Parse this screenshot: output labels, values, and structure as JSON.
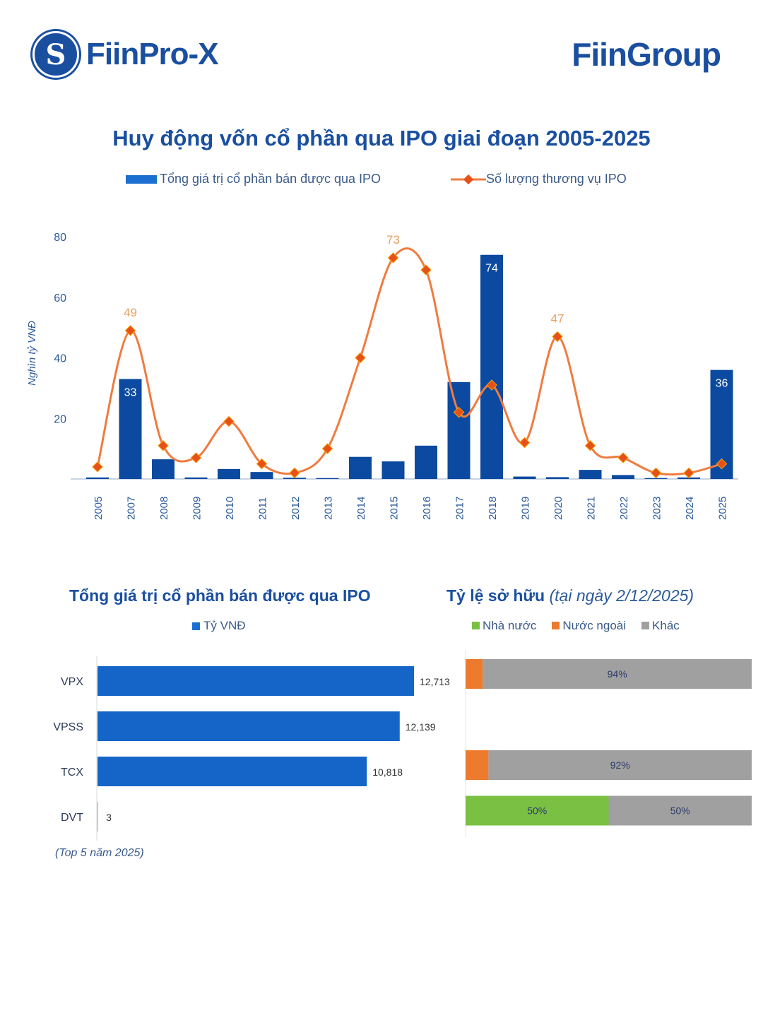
{
  "header": {
    "left_logo": "FiinPro-X",
    "left_logo_mark": "S",
    "right_logo": "FiinGroup"
  },
  "colors": {
    "brand": "#1a4fa0",
    "bar": "#0b4aa0",
    "line": "#f07b3f",
    "marker": "#e8501a",
    "state": "#7ac143",
    "foreign": "#ee7a2e",
    "other": "#a0a0a0"
  },
  "chart_data": [
    {
      "type": "bar+line",
      "title": "Huy động vốn cổ phần qua IPO giai đoạn 2005-2025",
      "ylabel": "Nghìn tỷ VNĐ",
      "ylim": [
        0,
        80
      ],
      "yticks": [
        "20",
        "40",
        "60",
        "80"
      ],
      "legend_position": "top",
      "categories": [
        "2005",
        "2007",
        "2008",
        "2009",
        "2010",
        "2011",
        "2012",
        "2013",
        "2014",
        "2015",
        "2016",
        "2017",
        "2018",
        "2019",
        "2020",
        "2021",
        "2022",
        "2023",
        "2024",
        "2025"
      ],
      "series": [
        {
          "name": "Tổng giá trị cổ phần bán được qua IPO",
          "type": "bar",
          "values": [
            0.5,
            33,
            6.5,
            0.5,
            3.3,
            2.3,
            0.4,
            0.3,
            7.3,
            5.8,
            11,
            32,
            74,
            0.8,
            0.6,
            3,
            1.3,
            0.3,
            0.5,
            36
          ],
          "data_labels": {
            "2007": "33",
            "2018": "74",
            "2025": "36"
          }
        },
        {
          "name": "Số lượng thương vụ IPO",
          "type": "line",
          "values": [
            4,
            49,
            11,
            7,
            19,
            5,
            2,
            10,
            40,
            73,
            69,
            22,
            31,
            12,
            47,
            11,
            7,
            2,
            2,
            5
          ],
          "data_labels": {
            "2007": "49",
            "2015": "73",
            "2020": "47"
          }
        }
      ]
    },
    {
      "type": "bar",
      "orientation": "horizontal",
      "title": "Tổng giá trị cổ phần bán được qua IPO",
      "legend": "Tỷ VNĐ",
      "categories": [
        "VPX",
        "VPSS",
        "TCX",
        "DVT"
      ],
      "values": [
        12713,
        12139,
        10818,
        3
      ],
      "value_labels": [
        "12,713",
        "12,139",
        "10,818",
        "3"
      ],
      "footnote": "(Top 5 năm 2025)"
    },
    {
      "type": "bar",
      "orientation": "horizontal",
      "stacked": true,
      "title": "Tỷ lệ sở hữu",
      "title_note": "(tại ngày 2/12/2025)",
      "categories": [
        "VPX",
        "VPSS",
        "TCX",
        "DVT"
      ],
      "series": [
        {
          "name": "Nhà nước",
          "values": [
            0,
            null,
            0,
            50
          ]
        },
        {
          "name": "Nước ngoài",
          "values": [
            6,
            null,
            8,
            0
          ]
        },
        {
          "name": "Khác",
          "values": [
            94,
            null,
            92,
            50
          ]
        }
      ],
      "value_labels": [
        [
          "",
          "",
          "94%"
        ],
        null,
        [
          "",
          "",
          "92%"
        ],
        [
          "50%",
          "",
          "50%"
        ]
      ]
    }
  ]
}
